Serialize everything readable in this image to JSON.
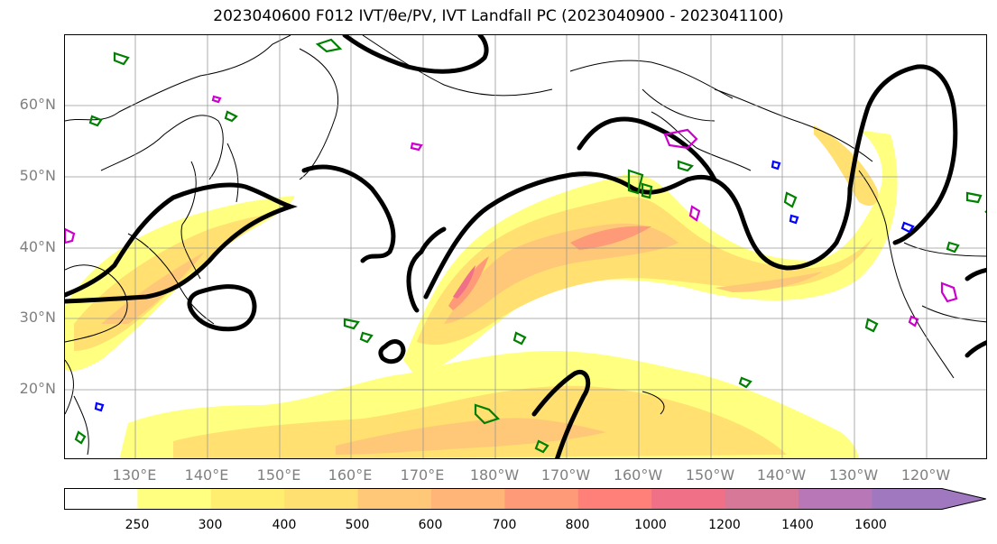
{
  "title": "2023040600 F012 IVT/θe/PV, IVT Landfall PC (2023040900 - 2023041100)",
  "map": {
    "lat_labels": [
      "60°N",
      "50°N",
      "40°N",
      "30°N",
      "20°N"
    ],
    "lon_labels": [
      "130°E",
      "140°E",
      "150°E",
      "160°E",
      "170°E",
      "180°W",
      "170°W",
      "160°W",
      "150°W",
      "140°W",
      "130°W",
      "120°W"
    ]
  },
  "colorbar": {
    "tick_labels": [
      "250",
      "300",
      "400",
      "500",
      "600",
      "700",
      "800",
      "1000",
      "1200",
      "1400",
      "1600"
    ],
    "colors": [
      "#ffffff",
      "#ffff80",
      "#ffee70",
      "#ffe070",
      "#ffc878",
      "#ffb478",
      "#ff9a78",
      "#ff8078",
      "#f07088",
      "#d87898",
      "#b878b8",
      "#a078c0"
    ]
  },
  "colors": {
    "contour_black": "#000000",
    "pv_green": "#008000",
    "pv_magenta": "#cc00cc",
    "pv_blue": "#0000ff",
    "grid": "#999999"
  }
}
